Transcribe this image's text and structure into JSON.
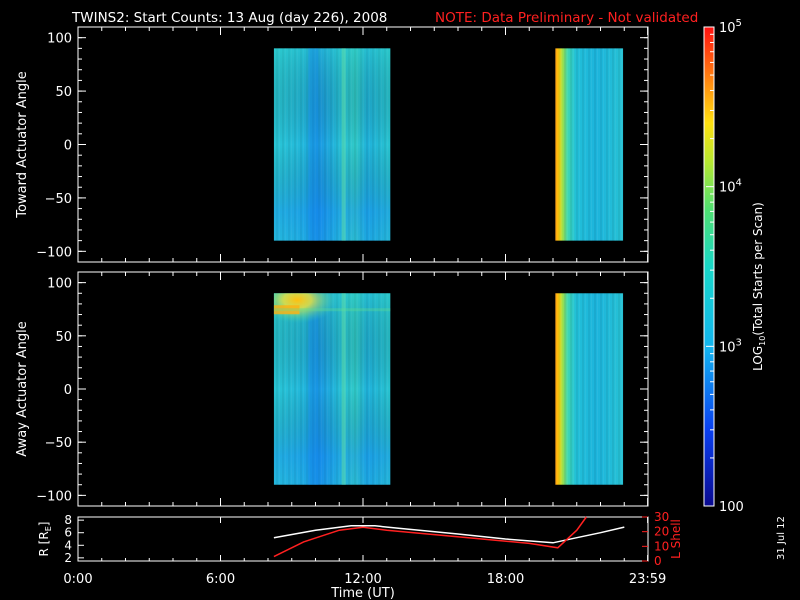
{
  "title": {
    "main": "TWINS2: Start Counts: 13 Aug (day 226), 2008",
    "note": "NOTE: Data Preliminary - Not validated"
  },
  "date_stamp": "31 Jul 12",
  "colors": {
    "background": "#000000",
    "foreground": "#ffffff",
    "note": "#ff2020",
    "lshell": "#ff2020",
    "radius": "#ffffff"
  },
  "chart_data": [
    {
      "type": "heatmap",
      "ylabel": "Toward Actuator Angle",
      "ylim": [
        -110,
        110
      ],
      "yticks": [
        100,
        50,
        0,
        -50,
        -100
      ],
      "ytick_labels": [
        "100",
        "50",
        "0",
        "−50",
        "−100"
      ],
      "xlim": [
        0,
        24
      ],
      "blocks": [
        {
          "t_start": 8.25,
          "t_end": 13.15,
          "angle_min": -90,
          "angle_max": 90,
          "level": "mid",
          "peak": "none"
        },
        {
          "t_start": 20.1,
          "t_end": 22.95,
          "angle_min": -90,
          "angle_max": 90,
          "level": "mid",
          "peak": "leading-edge"
        }
      ]
    },
    {
      "type": "heatmap",
      "ylabel": "Away Actuator Angle",
      "ylim": [
        -110,
        110
      ],
      "yticks": [
        100,
        50,
        0,
        -50,
        -100
      ],
      "ytick_labels": [
        "100",
        "50",
        "0",
        "−50",
        "−100"
      ],
      "xlim": [
        0,
        24
      ],
      "blocks": [
        {
          "t_start": 8.25,
          "t_end": 13.15,
          "angle_min": -90,
          "angle_max": 90,
          "level": "mid",
          "peak": "upper-left"
        },
        {
          "t_start": 20.1,
          "t_end": 22.95,
          "angle_min": -90,
          "angle_max": 90,
          "level": "mid",
          "peak": "leading-edge"
        }
      ]
    },
    {
      "type": "line",
      "xlabel": "Time (UT)",
      "xlim": [
        0,
        24
      ],
      "xticks": [
        0,
        6,
        12,
        18,
        23.983
      ],
      "xtick_labels": [
        "0:00",
        "6:00",
        "12:00",
        "18:00",
        "23:59"
      ],
      "y_left": {
        "label": "R [R",
        "label_sub": "E",
        "label_end": "]",
        "ylim": [
          1.5,
          8.5
        ],
        "ticks": [
          8,
          6,
          4,
          2
        ],
        "tick_labels": [
          "8",
          "6",
          "4",
          "2"
        ]
      },
      "y_right": {
        "label": "L Shell",
        "ylim": [
          0,
          30
        ],
        "ticks": [
          30,
          20,
          10,
          0
        ],
        "tick_labels": [
          "30",
          "20",
          "10",
          "0"
        ]
      },
      "series": [
        {
          "axis": "left",
          "color": "#ffffff",
          "x": [
            8.25,
            10,
            11.5,
            12.5,
            13.5,
            16,
            18,
            20,
            21,
            22,
            23
          ],
          "y": [
            5.2,
            6.4,
            7.1,
            7.1,
            6.7,
            5.8,
            5.0,
            4.4,
            5.2,
            6.0,
            6.9
          ]
        },
        {
          "axis": "right",
          "color": "#ff2020",
          "x": [
            8.25,
            9.5,
            11.0,
            12.0,
            13.0,
            15.0,
            17.0,
            19.0,
            20.2,
            21.0,
            21.4
          ],
          "y": [
            3,
            13,
            21,
            23,
            21,
            18,
            15,
            12,
            9,
            21,
            30
          ]
        }
      ]
    },
    {
      "type": "heatmap",
      "role": "colorbar",
      "label": "LOG",
      "label_sub": "10",
      "label_end": "(Total Starts per Scan)",
      "scale": "log",
      "range": [
        100,
        100000
      ],
      "ticks": [
        {
          "value": 100000,
          "base": "10",
          "exp": "5"
        },
        {
          "value": 10000,
          "base": "10",
          "exp": "4"
        },
        {
          "value": 1000,
          "base": "10",
          "exp": "3"
        },
        {
          "value": 100,
          "base": "100",
          "exp": ""
        }
      ]
    }
  ]
}
